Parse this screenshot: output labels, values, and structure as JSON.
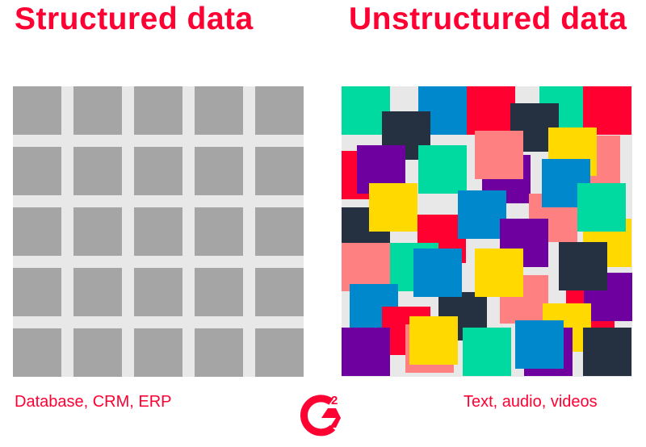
{
  "left": {
    "title": "Structured data",
    "caption": "Database, CRM, ERP"
  },
  "right": {
    "title": "Unstructured data",
    "caption": "Text, audio, videos"
  },
  "logo": {
    "text": "G2"
  },
  "colors": {
    "accent": "#ff0033",
    "grid_cell": "#a5a5a5",
    "background_panel": "#e8e8e8",
    "palette": {
      "green": "#00d9a0",
      "blue": "#0088cc",
      "red": "#ff0030",
      "dark": "#253140",
      "purple": "#6e00a0",
      "salmon": "#ff8080",
      "yellow": "#ffd900"
    }
  },
  "grid": {
    "rows": 5,
    "cols": 5
  },
  "unstructured_tiles": [
    [
      "green",
      0,
      0
    ],
    [
      "blue",
      95,
      0
    ],
    [
      "red",
      155,
      0
    ],
    [
      "green",
      245,
      0
    ],
    [
      "red",
      299,
      0
    ],
    [
      "red",
      0,
      80
    ],
    [
      "dark",
      50,
      31
    ],
    [
      "dark",
      209,
      21
    ],
    [
      "purple",
      19,
      73
    ],
    [
      "green",
      95,
      73
    ],
    [
      "salmon",
      285,
      61
    ],
    [
      "yellow",
      256,
      51
    ],
    [
      "purple",
      174,
      85
    ],
    [
      "salmon",
      165,
      55
    ],
    [
      "yellow",
      299,
      164
    ],
    [
      "salmon",
      232,
      133
    ],
    [
      "blue",
      248,
      90
    ],
    [
      "green",
      292,
      120
    ],
    [
      "dark",
      0,
      150
    ],
    [
      "yellow",
      34,
      120
    ],
    [
      "red",
      94,
      159
    ],
    [
      "blue",
      144,
      129
    ],
    [
      "purple",
      196,
      164
    ],
    [
      "salmon",
      0,
      194
    ],
    [
      "green",
      60,
      194
    ],
    [
      "red",
      278,
      239
    ],
    [
      "dark",
      120,
      255
    ],
    [
      "blue",
      89,
      201
    ],
    [
      "purple",
      300,
      231
    ],
    [
      "salmon",
      196,
      234
    ],
    [
      "yellow",
      165,
      201
    ],
    [
      "dark",
      269,
      193
    ],
    [
      "blue",
      10,
      245
    ],
    [
      "red",
      50,
      273
    ],
    [
      "purple",
      0,
      299
    ],
    [
      "yellow",
      249,
      269
    ],
    [
      "salmon",
      79,
      295
    ],
    [
      "yellow",
      84,
      285
    ],
    [
      "green",
      150,
      299
    ],
    [
      "purple",
      226,
      299
    ],
    [
      "blue",
      215,
      290
    ],
    [
      "dark",
      299,
      299
    ]
  ]
}
